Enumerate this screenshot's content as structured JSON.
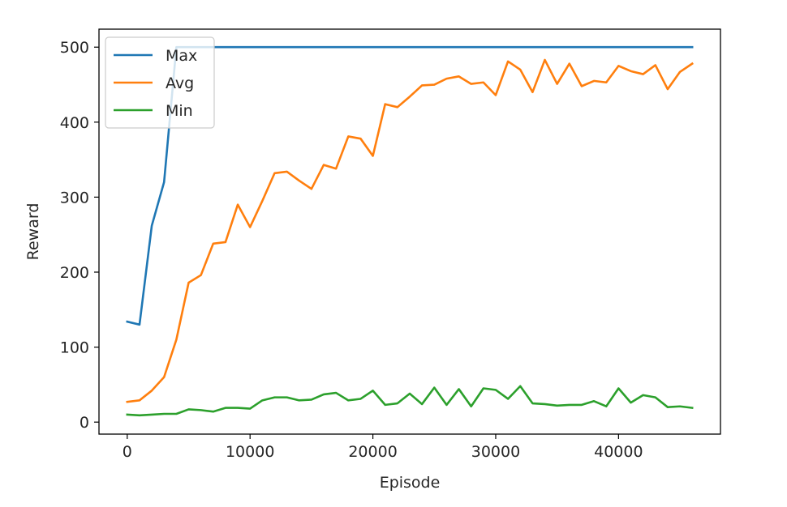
{
  "chart_data": {
    "type": "line",
    "title": "",
    "xlabel": "Episode",
    "ylabel": "Reward",
    "xlim": [
      -2300,
      48300
    ],
    "ylim": [
      -16,
      524
    ],
    "xticks": [
      0,
      10000,
      20000,
      30000,
      40000
    ],
    "xtick_labels": [
      "0",
      "10000",
      "20000",
      "30000",
      "40000"
    ],
    "yticks": [
      0,
      100,
      200,
      300,
      400,
      500
    ],
    "ytick_labels": [
      "0",
      "100",
      "200",
      "300",
      "400",
      "500"
    ],
    "grid": false,
    "legend_position": "top-left",
    "x": [
      0,
      1000,
      2000,
      3000,
      4000,
      5000,
      6000,
      7000,
      8000,
      9000,
      10000,
      11000,
      12000,
      13000,
      14000,
      15000,
      16000,
      17000,
      18000,
      19000,
      20000,
      21000,
      22000,
      23000,
      24000,
      25000,
      26000,
      27000,
      28000,
      29000,
      30000,
      31000,
      32000,
      33000,
      34000,
      35000,
      36000,
      37000,
      38000,
      39000,
      40000,
      41000,
      42000,
      43000,
      44000,
      45000,
      46000
    ],
    "series": [
      {
        "name": "Max",
        "color": "#1f77b4",
        "values": [
          134,
          130,
          262,
          320,
          500,
          500,
          500,
          500,
          500,
          500,
          500,
          500,
          500,
          500,
          500,
          500,
          500,
          500,
          500,
          500,
          500,
          500,
          500,
          500,
          500,
          500,
          500,
          500,
          500,
          500,
          500,
          500,
          500,
          500,
          500,
          500,
          500,
          500,
          500,
          500,
          500,
          500,
          500,
          500,
          500,
          500,
          500
        ]
      },
      {
        "name": "Avg",
        "color": "#ff7f0e",
        "values": [
          27,
          29,
          42,
          60,
          110,
          186,
          196,
          238,
          240,
          290,
          260,
          295,
          332,
          334,
          322,
          311,
          343,
          338,
          381,
          378,
          355,
          424,
          420,
          434,
          449,
          450,
          458,
          461,
          451,
          453,
          436,
          481,
          470,
          440,
          483,
          451,
          478,
          448,
          455,
          453,
          475,
          468,
          464,
          476,
          444,
          467,
          478
        ]
      },
      {
        "name": "Min",
        "color": "#2ca02c",
        "values": [
          10,
          9,
          10,
          11,
          11,
          17,
          16,
          14,
          19,
          19,
          18,
          29,
          33,
          33,
          29,
          30,
          37,
          39,
          29,
          31,
          42,
          23,
          25,
          38,
          24,
          46,
          23,
          44,
          21,
          45,
          43,
          31,
          48,
          25,
          24,
          22,
          23,
          23,
          28,
          21,
          45,
          26,
          36,
          33,
          20,
          21,
          19
        ]
      }
    ]
  }
}
